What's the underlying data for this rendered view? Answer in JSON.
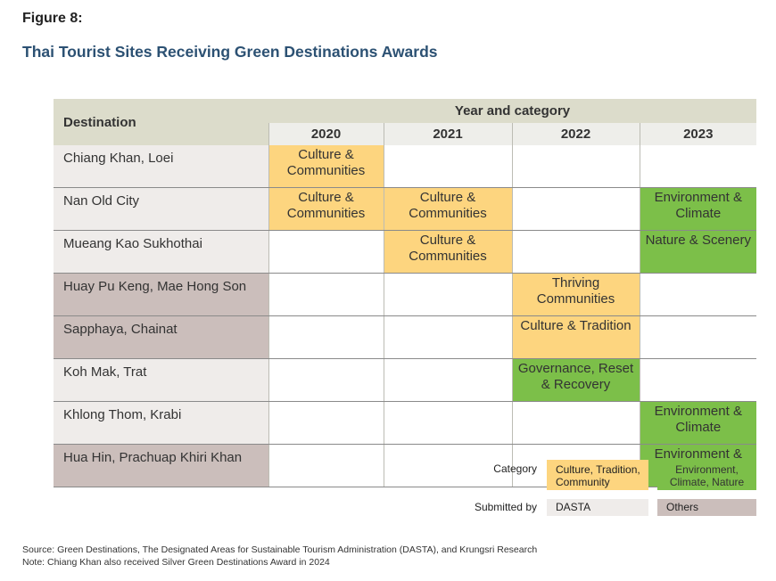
{
  "figure_label": "Figure 8:",
  "title": "Thai Tourist Sites Receiving Green Destinations Awards",
  "table": {
    "destination_header": "Destination",
    "group_header": "Year and category",
    "years": [
      "2020",
      "2021",
      "2022",
      "2023"
    ],
    "rows": [
      {
        "destination": "Chiang Khan, Loei",
        "submitted_by": "DASTA",
        "cells": [
          {
            "text": "Culture & Communities",
            "category": "culture"
          },
          {
            "text": "",
            "category": ""
          },
          {
            "text": "",
            "category": ""
          },
          {
            "text": "",
            "category": ""
          }
        ]
      },
      {
        "destination": "Nan Old City",
        "submitted_by": "DASTA",
        "cells": [
          {
            "text": "Culture & Communities",
            "category": "culture"
          },
          {
            "text": "Culture & Communities",
            "category": "culture"
          },
          {
            "text": "",
            "category": ""
          },
          {
            "text": "Environment & Climate",
            "category": "environment"
          }
        ]
      },
      {
        "destination": "Mueang Kao Sukhothai",
        "submitted_by": "DASTA",
        "cells": [
          {
            "text": "",
            "category": ""
          },
          {
            "text": "Culture & Communities",
            "category": "culture"
          },
          {
            "text": "",
            "category": ""
          },
          {
            "text": "Nature & Scenery",
            "category": "environment"
          }
        ]
      },
      {
        "destination": "Huay Pu Keng, Mae Hong Son",
        "submitted_by": "Others",
        "cells": [
          {
            "text": "",
            "category": ""
          },
          {
            "text": "",
            "category": ""
          },
          {
            "text": "Thriving Communities",
            "category": "culture"
          },
          {
            "text": "",
            "category": ""
          }
        ]
      },
      {
        "destination": "Sapphaya, Chainat",
        "submitted_by": "Others",
        "cells": [
          {
            "text": "",
            "category": ""
          },
          {
            "text": "",
            "category": ""
          },
          {
            "text": "Culture & Tradition",
            "category": "culture"
          },
          {
            "text": "",
            "category": ""
          }
        ]
      },
      {
        "destination": "Koh Mak, Trat",
        "submitted_by": "DASTA",
        "cells": [
          {
            "text": "",
            "category": ""
          },
          {
            "text": "",
            "category": ""
          },
          {
            "text": "Governance, Reset & Recovery",
            "category": "environment"
          },
          {
            "text": "",
            "category": ""
          }
        ]
      },
      {
        "destination": "Khlong Thom, Krabi",
        "submitted_by": "DASTA",
        "cells": [
          {
            "text": "",
            "category": ""
          },
          {
            "text": "",
            "category": ""
          },
          {
            "text": "",
            "category": ""
          },
          {
            "text": "Environment & Climate",
            "category": "environment"
          }
        ]
      },
      {
        "destination": "Hua Hin, Prachuap Khiri Khan",
        "submitted_by": "Others",
        "cells": [
          {
            "text": "",
            "category": ""
          },
          {
            "text": "",
            "category": ""
          },
          {
            "text": "",
            "category": ""
          },
          {
            "text": "Environment & Climate",
            "category": "environment"
          }
        ]
      }
    ]
  },
  "legend": {
    "category_label": "Category",
    "category_culture": "Culture, Tradition, Community",
    "category_environment": "Environment, Climate, Nature",
    "submitted_label": "Submitted by",
    "submitted_dasta": "DASTA",
    "submitted_others": "Others"
  },
  "colors": {
    "culture": "#fdd57f",
    "environment": "#7cbf49",
    "dasta": "#efecea",
    "others": "#cbbebb",
    "title": "#2c5173"
  },
  "notes": {
    "source": "Source: Green Destinations, The Designated Areas for Sustainable Tourism Administration (DASTA), and Krungsri Research",
    "note": "Note: Chiang Khan also received Silver Green Destinations Award in 2024"
  }
}
